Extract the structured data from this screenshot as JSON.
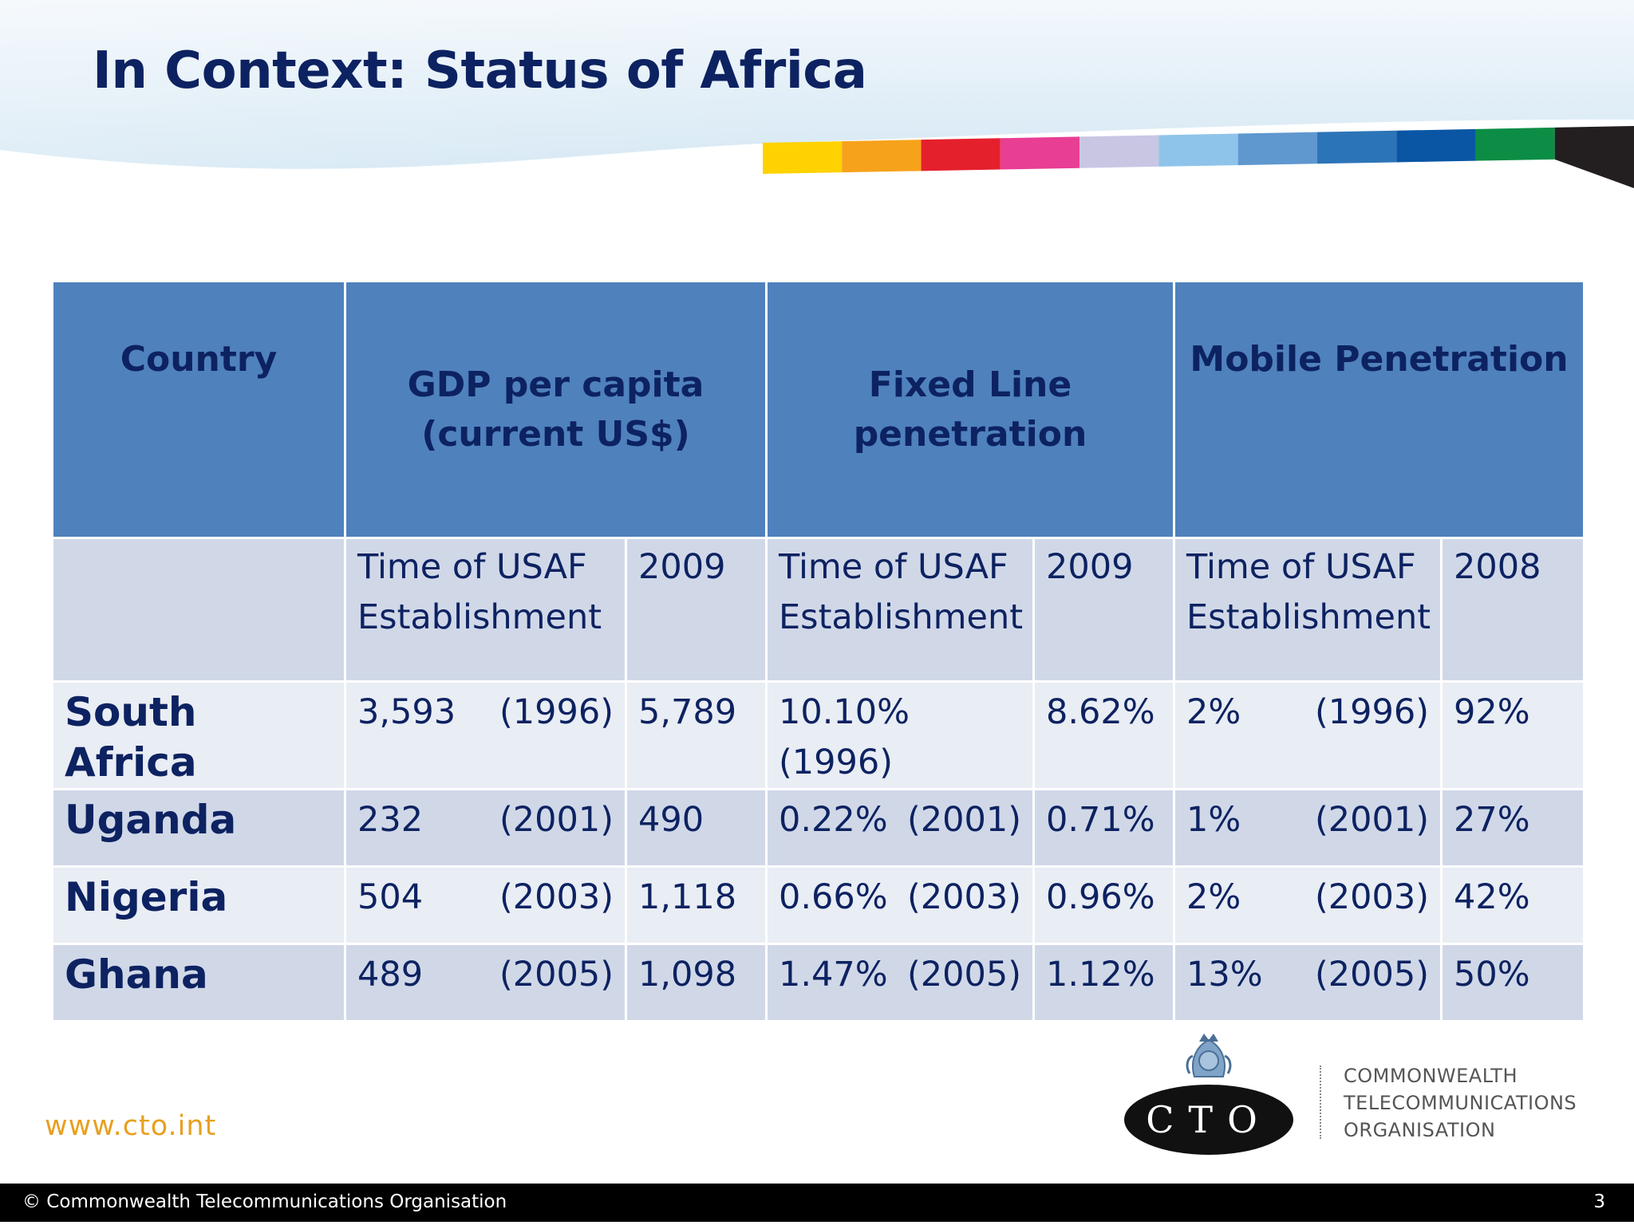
{
  "slide": {
    "title": "In Context: Status of Africa",
    "website": "www.cto.int",
    "logo_text": "CTO",
    "org_name_lines": [
      "COMMONWEALTH",
      "TELECOMMUNICATIONS",
      "ORGANISATION"
    ],
    "footer_copyright": "© Commonwealth Telecommunications Organisation",
    "page_number": "3"
  },
  "colors": {
    "title": "#0d2261",
    "header_fill": "#4f81bd",
    "row_fill_dark": "#d0d8e8",
    "row_fill_light": "#e9edf4",
    "website": "#e8a020",
    "color_bar": [
      "#ffd200",
      "#f7a21b",
      "#e5202d",
      "#e83e93",
      "#c9c6e4",
      "#8fc4ea",
      "#5f97cf",
      "#2c74b8",
      "#0a56a5",
      "#0c8d45",
      "#231f20"
    ]
  },
  "table": {
    "headers": {
      "country": "Country",
      "gdp": "GDP per capita (current US$)",
      "fixed": "Fixed Line penetration",
      "mobile": "Mobile Penetration"
    },
    "subheaders": {
      "gdp_usaf": "Time of USAF Establishment",
      "gdp_year": "2009",
      "fixed_usaf": "Time of USAF Establishment",
      "fixed_year": "2009",
      "mobile_usaf": "Time of USAF Establishment",
      "mobile_year": "2008"
    },
    "rows": [
      {
        "country": "South Africa",
        "gdp_usaf": "3,593",
        "gdp_usaf_year": "(1996)",
        "gdp_2009": "5,789",
        "fixed_usaf": "10.10%",
        "fixed_usaf_year": "(1996)",
        "fixed_2009": "8.62%",
        "mobile_usaf": "2%",
        "mobile_usaf_year": "(1996)",
        "mobile_2008": "92%"
      },
      {
        "country": "Uganda",
        "gdp_usaf": "232",
        "gdp_usaf_year": "(2001)",
        "gdp_2009": "490",
        "fixed_usaf": "0.22%",
        "fixed_usaf_year": "(2001)",
        "fixed_2009": "0.71%",
        "mobile_usaf": "1%",
        "mobile_usaf_year": "(2001)",
        "mobile_2008": "27%"
      },
      {
        "country": "Nigeria",
        "gdp_usaf": "504",
        "gdp_usaf_year": "(2003)",
        "gdp_2009": "1,118",
        "fixed_usaf": "0.66%",
        "fixed_usaf_year": "(2003)",
        "fixed_2009": "0.96%",
        "mobile_usaf": "2%",
        "mobile_usaf_year": "(2003)",
        "mobile_2008": "42%"
      },
      {
        "country": "Ghana",
        "gdp_usaf": "489",
        "gdp_usaf_year": "(2005)",
        "gdp_2009": "1,098",
        "fixed_usaf": "1.47%",
        "fixed_usaf_year": "(2005)",
        "fixed_2009": "1.12%",
        "mobile_usaf": "13%",
        "mobile_usaf_year": "(2005)",
        "mobile_2008": "50%"
      }
    ]
  }
}
